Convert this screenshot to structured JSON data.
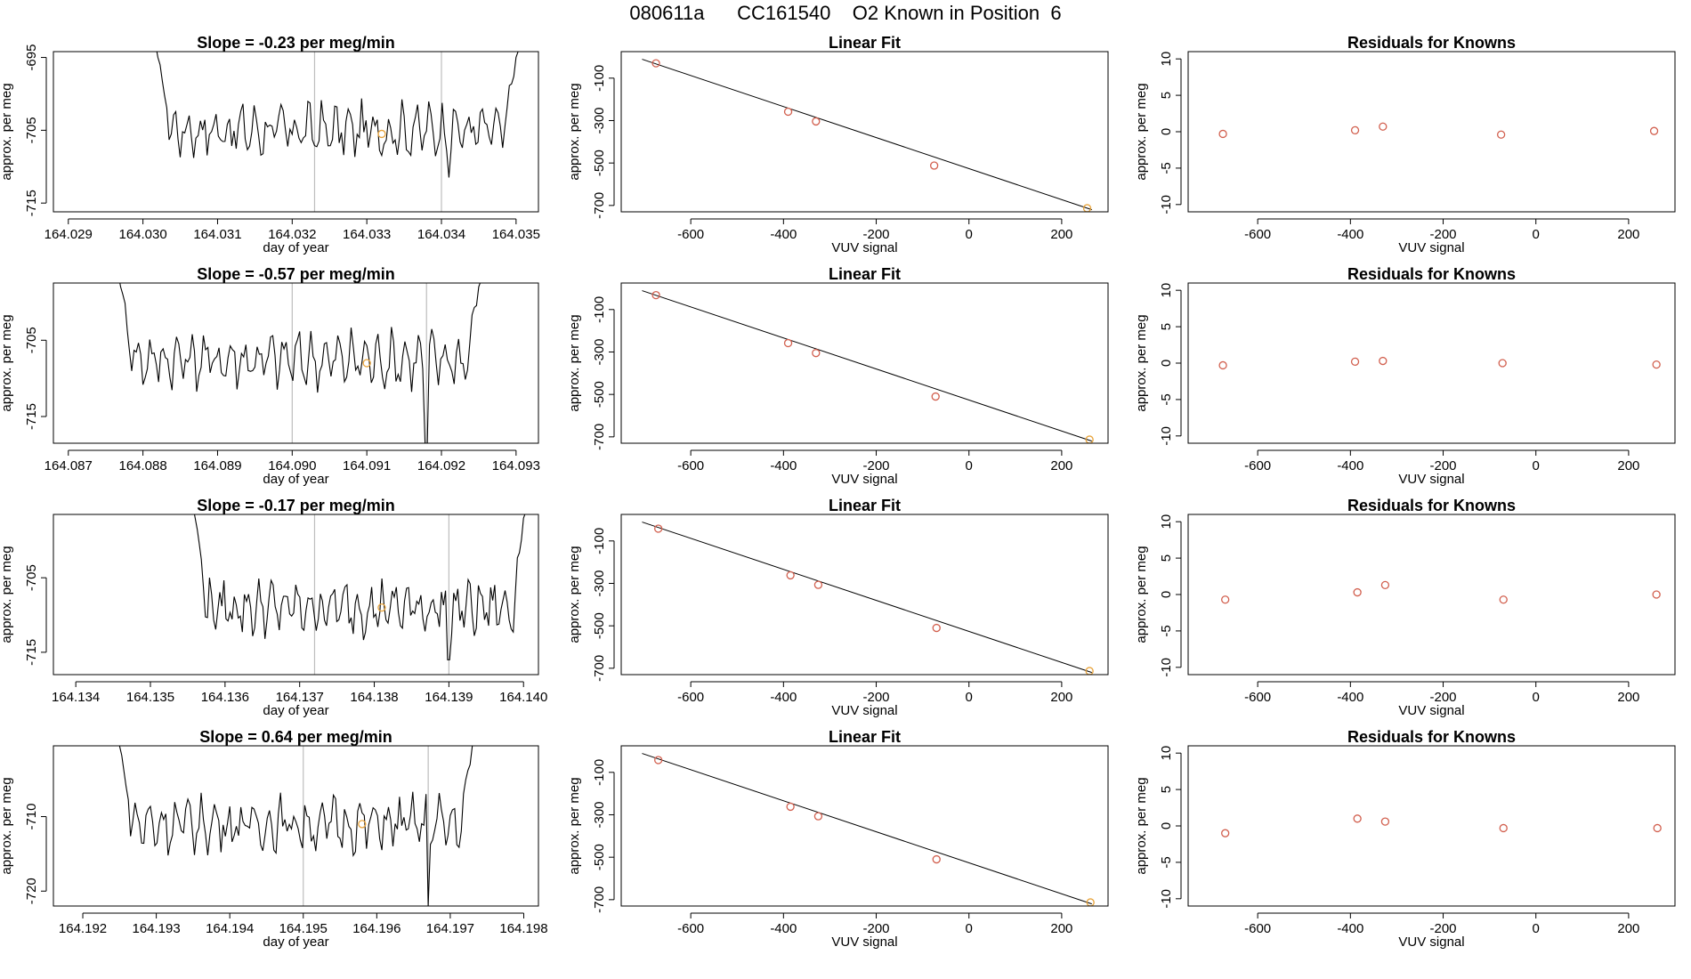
{
  "figure": {
    "title": "080611a      CC161540    O2 Known in Position  6"
  },
  "chart_data": [
    {
      "type": "line",
      "panel_row": 1,
      "panel_col": 1,
      "title": "Slope =  -0.23  per meg/min",
      "xlabel": "day of year",
      "ylabel": "approx. per meg",
      "xlim": [
        164.0288,
        164.0353
      ],
      "ylim": [
        -716.2,
        -694.2
      ],
      "xticks": [
        "164.029",
        "164.030",
        "164.031",
        "164.032",
        "164.033",
        "164.034",
        "164.035"
      ],
      "yticks": [
        "-695",
        "-705",
        "-715"
      ],
      "vlines": [
        164.0323,
        164.034
      ],
      "marker": {
        "x": 164.0332,
        "y": -705.5
      },
      "trace_range": [
        164.0301,
        164.0352
      ],
      "series": [
        {
          "x_start": 164.0302,
          "x_end": 164.035,
          "start_y": -695,
          "end_y": -695,
          "mean": -705,
          "amplitude": 3,
          "min_y": -710,
          "dip": {
            "x": 164.0341,
            "y": -711.5
          }
        }
      ]
    },
    {
      "type": "line",
      "panel_row": 2,
      "panel_col": 1,
      "title": "Slope =  -0.57  per meg/min",
      "xlabel": "day of year",
      "ylabel": "approx. per meg",
      "xlim": [
        164.0868,
        164.0933
      ],
      "ylim": [
        -718.5,
        -697.5
      ],
      "xticks": [
        "164.087",
        "164.088",
        "164.089",
        "164.090",
        "164.091",
        "164.092",
        "164.093"
      ],
      "yticks": [
        "-705",
        "-715"
      ],
      "vlines": [
        164.09,
        164.0918
      ],
      "marker": {
        "x": 164.091,
        "y": -708
      },
      "trace_range": [
        164.0876,
        164.0927
      ],
      "series": [
        {
          "x_start": 164.0877,
          "x_end": 164.0925,
          "start_y": -698,
          "end_y": -698,
          "mean": -707.5,
          "amplitude": 3,
          "min_y": -712,
          "dip": {
            "x": 164.0918,
            "y": -718.5
          }
        }
      ]
    },
    {
      "type": "line",
      "panel_row": 3,
      "panel_col": 1,
      "title": "Slope =  -0.17  per meg/min",
      "xlabel": "day of year",
      "ylabel": "approx. per meg",
      "xlim": [
        164.1337,
        164.1402
      ],
      "ylim": [
        -718,
        -696.5
      ],
      "xticks": [
        "164.134",
        "164.135",
        "164.136",
        "164.137",
        "164.138",
        "164.139",
        "164.140"
      ],
      "yticks": [
        "-705",
        "-715"
      ],
      "vlines": [
        164.1372,
        164.139
      ],
      "marker": {
        "x": 164.1381,
        "y": -709
      },
      "trace_range": [
        164.1355,
        164.1402
      ],
      "series": [
        {
          "x_start": 164.1356,
          "x_end": 164.14,
          "start_y": -697,
          "end_y": -697,
          "mean": -709,
          "amplitude": 3,
          "min_y": -713,
          "dip": {
            "x": 164.139,
            "y": -716
          }
        }
      ]
    },
    {
      "type": "line",
      "panel_row": 4,
      "panel_col": 1,
      "title": "Slope =  0.64  per meg/min",
      "xlabel": "day of year",
      "ylabel": "approx. per meg",
      "xlim": [
        164.1916,
        164.1982
      ],
      "ylim": [
        -722,
        -700.5
      ],
      "xticks": [
        "164.192",
        "164.193",
        "164.194",
        "164.195",
        "164.196",
        "164.197",
        "164.198"
      ],
      "yticks": [
        "-710",
        "-720"
      ],
      "vlines": [
        164.195,
        164.1967
      ],
      "marker": {
        "x": 164.1958,
        "y": -711
      },
      "trace_range": [
        164.1924,
        164.1974
      ],
      "series": [
        {
          "x_start": 164.1925,
          "x_end": 164.1973,
          "start_y": -700.5,
          "end_y": -700.5,
          "mean": -711,
          "amplitude": 3,
          "min_y": -714,
          "dip": {
            "x": 164.1967,
            "y": -722
          }
        }
      ]
    },
    {
      "type": "scatter",
      "panel_row": 1,
      "panel_col": 2,
      "title": "Linear Fit",
      "xlabel": "VUV signal",
      "ylabel": "approx. per meg",
      "xlim": [
        -750,
        300
      ],
      "ylim": [
        -730,
        25
      ],
      "xticks": [
        -600,
        -400,
        -200,
        0,
        200
      ],
      "yticks": [
        -100,
        -300,
        -500,
        -700
      ],
      "points": [
        [
          -675,
          -30
        ],
        [
          -390,
          -258
        ],
        [
          -330,
          -304
        ],
        [
          -75,
          -512
        ],
        [
          255,
          -713
        ]
      ],
      "highlight_index": 4,
      "fit_line": [
        [
          -705,
          -11
        ],
        [
          265,
          -720
        ]
      ]
    },
    {
      "type": "scatter",
      "panel_row": 2,
      "panel_col": 2,
      "title": "Linear Fit",
      "xlabel": "VUV signal",
      "ylabel": "approx. per meg",
      "xlim": [
        -750,
        300
      ],
      "ylim": [
        -730,
        25
      ],
      "xticks": [
        -600,
        -400,
        -200,
        0,
        200
      ],
      "yticks": [
        -100,
        -300,
        -500,
        -700
      ],
      "points": [
        [
          -675,
          -32
        ],
        [
          -390,
          -258
        ],
        [
          -330,
          -305
        ],
        [
          -72,
          -510
        ],
        [
          260,
          -713
        ]
      ],
      "highlight_index": 4,
      "fit_line": [
        [
          -705,
          -11
        ],
        [
          265,
          -720
        ]
      ]
    },
    {
      "type": "scatter",
      "panel_row": 3,
      "panel_col": 2,
      "title": "Linear Fit",
      "xlabel": "VUV signal",
      "ylabel": "approx. per meg",
      "xlim": [
        -750,
        300
      ],
      "ylim": [
        -730,
        25
      ],
      "xticks": [
        -600,
        -400,
        -200,
        0,
        200
      ],
      "yticks": [
        -100,
        -300,
        -500,
        -700
      ],
      "points": [
        [
          -670,
          -42
        ],
        [
          -385,
          -262
        ],
        [
          -325,
          -307
        ],
        [
          -70,
          -510
        ],
        [
          260,
          -713
        ]
      ],
      "highlight_index": 4,
      "fit_line": [
        [
          -705,
          -11
        ],
        [
          265,
          -720
        ]
      ]
    },
    {
      "type": "scatter",
      "panel_row": 4,
      "panel_col": 2,
      "title": "Linear Fit",
      "xlabel": "VUV signal",
      "ylabel": "approx. per meg",
      "xlim": [
        -750,
        300
      ],
      "ylim": [
        -730,
        25
      ],
      "xticks": [
        -600,
        -400,
        -200,
        0,
        200
      ],
      "yticks": [
        -100,
        -300,
        -500,
        -700
      ],
      "points": [
        [
          -670,
          -42
        ],
        [
          -385,
          -262
        ],
        [
          -325,
          -307
        ],
        [
          -70,
          -510
        ],
        [
          262,
          -713
        ]
      ],
      "highlight_index": 4,
      "fit_line": [
        [
          -705,
          -11
        ],
        [
          265,
          -720
        ]
      ]
    },
    {
      "type": "scatter",
      "panel_row": 1,
      "panel_col": 3,
      "title": "Residuals for Knowns",
      "xlabel": "VUV signal",
      "ylabel": "approx. per meg",
      "xlim": [
        -750,
        300
      ],
      "ylim": [
        -11,
        11
      ],
      "xticks": [
        -600,
        -400,
        -200,
        0,
        200
      ],
      "yticks": [
        10,
        5,
        0,
        -5,
        -10
      ],
      "points": [
        [
          -675,
          -0.3
        ],
        [
          -390,
          0.2
        ],
        [
          -330,
          0.7
        ],
        [
          -75,
          -0.4
        ],
        [
          255,
          0.1
        ]
      ]
    },
    {
      "type": "scatter",
      "panel_row": 2,
      "panel_col": 3,
      "title": "Residuals for Knowns",
      "xlabel": "VUV signal",
      "ylabel": "approx. per meg",
      "xlim": [
        -750,
        300
      ],
      "ylim": [
        -11,
        11
      ],
      "xticks": [
        -600,
        -400,
        -200,
        0,
        200
      ],
      "yticks": [
        10,
        5,
        0,
        -5,
        -10
      ],
      "points": [
        [
          -675,
          -0.3
        ],
        [
          -390,
          0.2
        ],
        [
          -330,
          0.3
        ],
        [
          -72,
          0.0
        ],
        [
          260,
          -0.2
        ]
      ]
    },
    {
      "type": "scatter",
      "panel_row": 3,
      "panel_col": 3,
      "title": "Residuals for Knowns",
      "xlabel": "VUV signal",
      "ylabel": "approx. per meg",
      "xlim": [
        -750,
        300
      ],
      "ylim": [
        -11,
        11
      ],
      "xticks": [
        -600,
        -400,
        -200,
        0,
        200
      ],
      "yticks": [
        10,
        5,
        0,
        -5,
        -10
      ],
      "points": [
        [
          -670,
          -0.7
        ],
        [
          -385,
          0.3
        ],
        [
          -325,
          1.3
        ],
        [
          -70,
          -0.7
        ],
        [
          260,
          0.0
        ]
      ]
    },
    {
      "type": "scatter",
      "panel_row": 4,
      "panel_col": 3,
      "title": "Residuals for Knowns",
      "xlabel": "VUV signal",
      "ylabel": "approx. per meg",
      "xlim": [
        -750,
        300
      ],
      "ylim": [
        -11,
        11
      ],
      "xticks": [
        -600,
        -400,
        -200,
        0,
        200
      ],
      "yticks": [
        10,
        5,
        0,
        -5,
        -10
      ],
      "points": [
        [
          -670,
          -1.0
        ],
        [
          -385,
          1.0
        ],
        [
          -325,
          0.6
        ],
        [
          -70,
          -0.3
        ],
        [
          262,
          -0.3
        ]
      ]
    }
  ],
  "colors": {
    "line": "#000000",
    "marker": "#d2604f",
    "highlight": "#e8a33a",
    "vline": "#bdbdbd",
    "axis": "#000000"
  }
}
